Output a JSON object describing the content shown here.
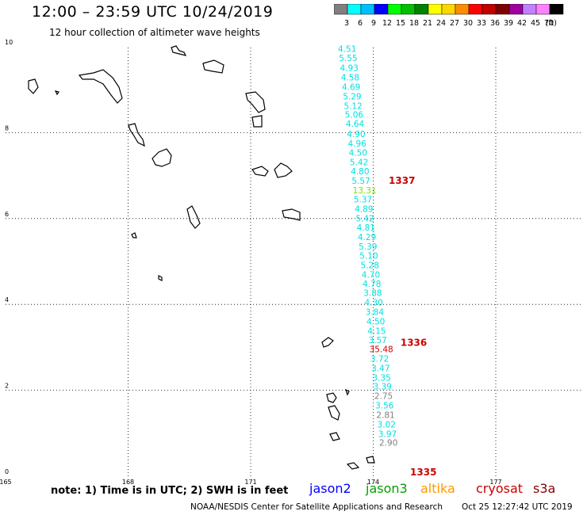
{
  "header": {
    "title": "12:00 – 23:59 UTC 10/24/2019",
    "subtitle": "12 hour collection of altimeter wave heights"
  },
  "color_scale": {
    "unit_label": "(ft)",
    "bins": [
      {
        "label": "3",
        "color": "#808080"
      },
      {
        "label": "6",
        "color": "#00ffff"
      },
      {
        "label": "9",
        "color": "#00bfff"
      },
      {
        "label": "12",
        "color": "#0000ff"
      },
      {
        "label": "15",
        "color": "#00ff00"
      },
      {
        "label": "18",
        "color": "#00c000"
      },
      {
        "label": "21",
        "color": "#008000"
      },
      {
        "label": "24",
        "color": "#ffff00"
      },
      {
        "label": "27",
        "color": "#ffd700"
      },
      {
        "label": "30",
        "color": "#ff8c00"
      },
      {
        "label": "33",
        "color": "#ff0000"
      },
      {
        "label": "36",
        "color": "#c00000"
      },
      {
        "label": "39",
        "color": "#800000"
      },
      {
        "label": "42",
        "color": "#a000a0"
      },
      {
        "label": "45",
        "color": "#c080ff"
      },
      {
        "label": "70",
        "color": "#ff80ff"
      },
      {
        "label": "",
        "color": "#000000"
      }
    ]
  },
  "map": {
    "lon_ticks": [
      "165",
      "168",
      "171",
      "174",
      "177"
    ],
    "lat_ticks": [
      "0",
      "2",
      "4",
      "6",
      "8",
      "10"
    ],
    "track_labels": [
      {
        "text": "1337",
        "lat": 6.88,
        "color": "#cc0000"
      },
      {
        "text": "1336",
        "lat": 3.11,
        "color": "#cc0000"
      },
      {
        "text": "1335",
        "lat": 0.0,
        "color": "#cc0000"
      }
    ],
    "wave_heights": [
      {
        "value": "4.51",
        "lat": 9.95,
        "color": "#00e0e0"
      },
      {
        "value": "5.55",
        "lat": 9.74,
        "color": "#00e0e0"
      },
      {
        "value": "4.93",
        "lat": 9.51,
        "color": "#00e0e0"
      },
      {
        "value": "4.58",
        "lat": 9.29,
        "color": "#00e0e0"
      },
      {
        "value": "4.69",
        "lat": 9.07,
        "color": "#00e0e0"
      },
      {
        "value": "5.29",
        "lat": 8.85,
        "color": "#00e0e0"
      },
      {
        "value": "5.12",
        "lat": 8.63,
        "color": "#00e0e0"
      },
      {
        "value": "5.06",
        "lat": 8.42,
        "color": "#00e0e0"
      },
      {
        "value": "4.64",
        "lat": 8.21,
        "color": "#00e0e0"
      },
      {
        "value": "4.90",
        "lat": 7.97,
        "color": "#00e0e0"
      },
      {
        "value": "4.96",
        "lat": 7.75,
        "color": "#00e0e0"
      },
      {
        "value": "4.50",
        "lat": 7.54,
        "color": "#00e0e0"
      },
      {
        "value": "5.42",
        "lat": 7.32,
        "color": "#00e0e0"
      },
      {
        "value": "4.80",
        "lat": 7.1,
        "color": "#00e0e0"
      },
      {
        "value": "5.57",
        "lat": 6.88,
        "color": "#00e0e0"
      },
      {
        "value": "13.31",
        "lat": 6.66,
        "color": "#80e000"
      },
      {
        "value": "5.37",
        "lat": 6.45,
        "color": "#00e0e0"
      },
      {
        "value": "4.89",
        "lat": 6.23,
        "color": "#00e0e0"
      },
      {
        "value": "5.42",
        "lat": 6.01,
        "color": "#00e0e0"
      },
      {
        "value": "4.81",
        "lat": 5.79,
        "color": "#00e0e0"
      },
      {
        "value": "4.29",
        "lat": 5.57,
        "color": "#00e0e0"
      },
      {
        "value": "5.39",
        "lat": 5.35,
        "color": "#00e0e0"
      },
      {
        "value": "5.10",
        "lat": 5.14,
        "color": "#00e0e0"
      },
      {
        "value": "5.28",
        "lat": 4.92,
        "color": "#00e0e0"
      },
      {
        "value": "4.70",
        "lat": 4.7,
        "color": "#00e0e0"
      },
      {
        "value": "4.78",
        "lat": 4.48,
        "color": "#00e0e0"
      },
      {
        "value": "3.88",
        "lat": 4.27,
        "color": "#00e0e0"
      },
      {
        "value": "4.30",
        "lat": 4.05,
        "color": "#00e0e0"
      },
      {
        "value": "3.84",
        "lat": 3.83,
        "color": "#00e0e0"
      },
      {
        "value": "4.50",
        "lat": 3.61,
        "color": "#00e0e0"
      },
      {
        "value": "4.15",
        "lat": 3.39,
        "color": "#00e0e0"
      },
      {
        "value": "3.57",
        "lat": 3.17,
        "color": "#00e0e0"
      },
      {
        "value": "35.48",
        "lat": 2.96,
        "color": "#cc0000"
      },
      {
        "value": "3.72",
        "lat": 2.74,
        "color": "#00e0e0"
      },
      {
        "value": "3.47",
        "lat": 2.52,
        "color": "#00e0e0"
      },
      {
        "value": "3.35",
        "lat": 2.3,
        "color": "#00e0e0"
      },
      {
        "value": "3.39",
        "lat": 2.09,
        "color": "#00e0e0"
      },
      {
        "value": "2.75",
        "lat": 1.87,
        "color": "#808080"
      },
      {
        "value": "3.56",
        "lat": 1.65,
        "color": "#00e0e0"
      },
      {
        "value": "2.81",
        "lat": 1.43,
        "color": "#808080"
      },
      {
        "value": "3.02",
        "lat": 1.21,
        "color": "#00e0e0"
      },
      {
        "value": "3.97",
        "lat": 0.99,
        "color": "#00e0e0"
      },
      {
        "value": "2.90",
        "lat": 0.78,
        "color": "#808080"
      }
    ]
  },
  "legend": {
    "note": "note: 1) Time is in UTC; 2) SWH is in feet",
    "satellites": [
      {
        "name": "jason2",
        "color": "#0000ff"
      },
      {
        "name": "jason3",
        "color": "#00a000"
      },
      {
        "name": "altika",
        "color": "#ff9900"
      },
      {
        "name": "cryosat",
        "color": "#cc0000"
      },
      {
        "name": "s3a",
        "color": "#880000"
      }
    ]
  },
  "footer": {
    "credit": "NOAA/NESDIS Center for Satellite Applications and Research",
    "timestamp": "Oct 25 12:27:42 UTC 2019"
  }
}
